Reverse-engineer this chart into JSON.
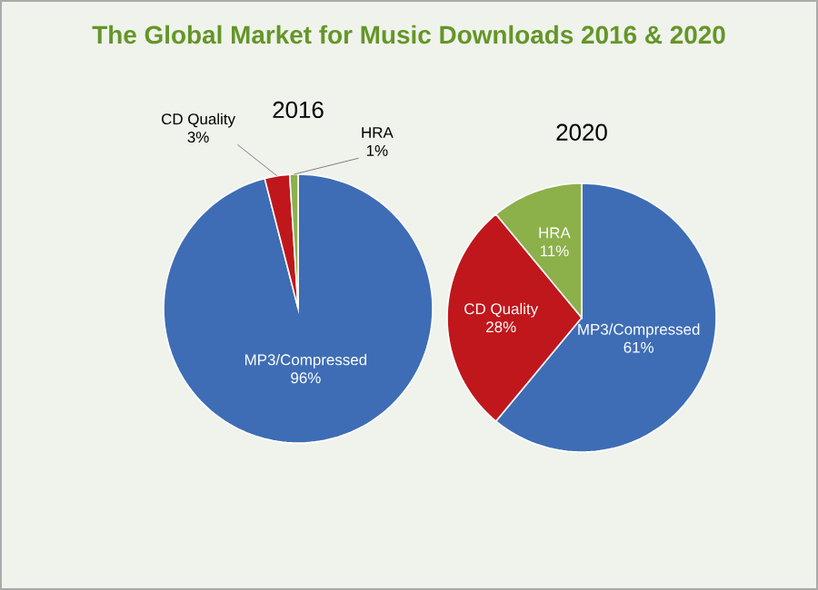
{
  "chart_data": [
    {
      "type": "pie",
      "title": "The Global Market for Music Downloads 2016 & 2020",
      "subtitle": "2016",
      "categories": [
        "MP3/Compressed",
        "CD Quality",
        "HRA"
      ],
      "values": [
        96,
        3,
        1
      ],
      "value_labels": [
        "96%",
        "3%",
        "1%"
      ],
      "colors": [
        "#3e6db5",
        "#c0171c",
        "#8cb04a"
      ]
    },
    {
      "type": "pie",
      "subtitle": "2020",
      "categories": [
        "MP3/Compressed",
        "CD Quality",
        "HRA"
      ],
      "values": [
        61,
        28,
        11
      ],
      "value_labels": [
        "61%",
        "28%",
        "11%"
      ],
      "colors": [
        "#3e6db5",
        "#c0171c",
        "#8cb04a"
      ]
    }
  ]
}
